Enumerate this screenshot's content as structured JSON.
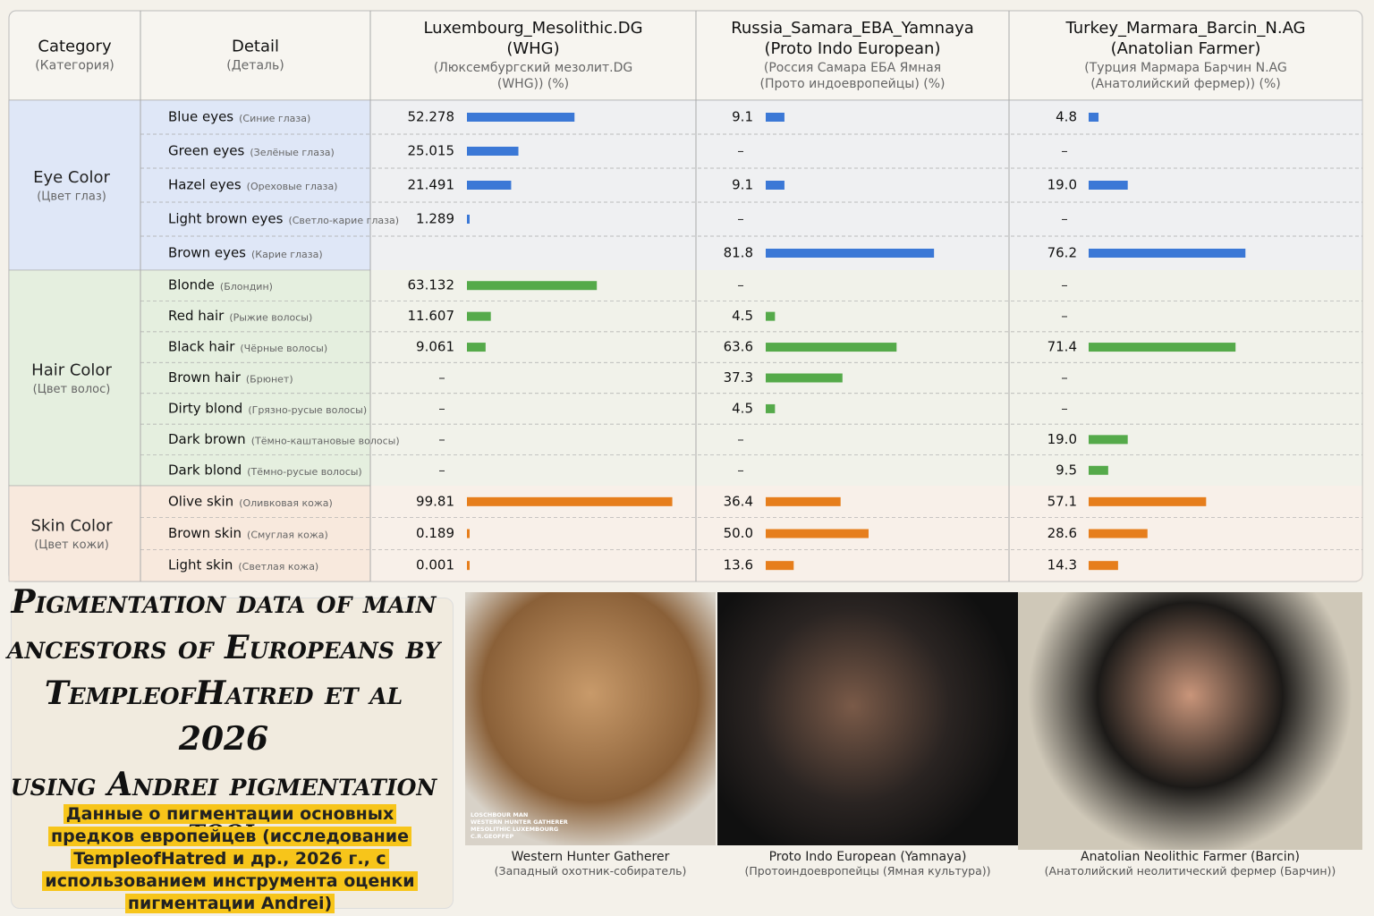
{
  "table": {
    "header": [
      {
        "title": [
          "Category"
        ],
        "subtitle": [
          "(Категория)"
        ]
      },
      {
        "title": [
          "Detail"
        ],
        "subtitle": [
          "(Деталь)"
        ]
      },
      {
        "title": [
          "Luxembourg_Mesolithic.DG",
          "(WHG)"
        ],
        "subtitle": [
          "(Люксембургский мезолит.DG",
          "(WHG)) (%)"
        ]
      },
      {
        "title": [
          "Russia_Samara_EBA_Yamnaya",
          "(Proto Indo European)"
        ],
        "subtitle": [
          "(Россия Самара ЕБА Ямная",
          "(Прото индоевропейцы) (%)"
        ]
      },
      {
        "title": [
          "Turkey_Marmara_Barcin_N.AG",
          "(Anatolian Farmer)"
        ],
        "subtitle": [
          "(Турция Мармара Барчин N.AG",
          "(Анатолийский фермер)) (%)"
        ]
      }
    ],
    "groups": [
      {
        "name": "Eye Color",
        "subtitle": "(Цвет глаз)",
        "color": "#3b78d6",
        "background": "#dfe7f7",
        "rows": [
          {
            "name": "Blue eyes",
            "subtitle": "(Синие глаза)",
            "values": [
              52.278,
              9.1,
              4.8
            ]
          },
          {
            "name": "Green eyes",
            "subtitle": "(Зелёные глаза)",
            "values": [
              25.015,
              "–",
              "–"
            ]
          },
          {
            "name": "Hazel eyes",
            "subtitle": "(Ореховые глаза)",
            "values": [
              21.491,
              9.1,
              {
                "value": 19,
                "label": "19.0"
              }
            ]
          },
          {
            "name": "Light brown eyes",
            "subtitle": "(Светло-карие глаза)",
            "values": [
              1.289,
              "–",
              "–"
            ]
          },
          {
            "name": "Brown eyes",
            "subtitle": "(Карие глаза)",
            "values": [
              null,
              81.8,
              76.2
            ]
          }
        ]
      },
      {
        "name": "Hair Color",
        "subtitle": "(Цвет волос)",
        "color": "#55aa4a",
        "background": "#e5efdf",
        "rows": [
          {
            "name": "Blonde",
            "subtitle": "(Блондин)",
            "values": [
              63.132,
              "–",
              "–"
            ]
          },
          {
            "name": "Red hair",
            "subtitle": "(Рыжие волосы)",
            "values": [
              11.607,
              4.5,
              "–"
            ]
          },
          {
            "name": "Black hair",
            "subtitle": "(Чёрные волосы)",
            "values": [
              9.061,
              63.6,
              71.4
            ]
          },
          {
            "name": "Brown hair",
            "subtitle": "(Брюнет)",
            "values": [
              "–",
              37.3,
              "–"
            ]
          },
          {
            "name": "Dirty blond",
            "subtitle": "(Грязно-русые волосы)",
            "values": [
              "–",
              4.5,
              "–"
            ]
          },
          {
            "name": "Dark brown",
            "subtitle": "(Тёмно-каштановые волосы)",
            "values": [
              "–",
              "–",
              {
                "value": 19,
                "label": "19.0"
              }
            ]
          },
          {
            "name": "Dark blond",
            "subtitle": "(Тёмно-русые волосы)",
            "values": [
              "–",
              "–",
              9.5
            ]
          }
        ]
      },
      {
        "name": "Skin Color",
        "subtitle": "(Цвет кожи)",
        "color": "#e67e1c",
        "background": "#f8e9dd",
        "rows": [
          {
            "name": "Olive skin",
            "subtitle": "(Оливковая кожа)",
            "values": [
              99.81,
              36.4,
              57.1
            ]
          },
          {
            "name": "Brown skin",
            "subtitle": "(Смуглая кожа)",
            "values": [
              0.189,
              {
                "value": 50,
                "label": "50.0"
              },
              28.6
            ]
          },
          {
            "name": "Light skin",
            "subtitle": "(Светлая кожа)",
            "values": [
              0.001,
              13.6,
              14.3
            ]
          }
        ]
      }
    ]
  },
  "title": [
    "Pigmentation data of main",
    "ancestors of Europeans by",
    "TempleofHatred et al 2026",
    "using Andrei pigmentation",
    "tool"
  ],
  "subtitle_ru": [
    "Данные о пигментации основных",
    "предков европейцев (исследование",
    "TempleofHatred и др., 2026 г., с",
    "использованием инструмента оценки",
    "пигментации Andrei)"
  ],
  "portraits": [
    {
      "caption": "Western Hunter Gatherer",
      "caption_ru": "(Западный охотник-собиратель)",
      "photo_text": [
        "LOSCHBOUR MAN",
        "WESTERN HUNTER GATHERER",
        "MESOLITHIC LUXEMBOURG",
        "C.R.GEOFFEP"
      ]
    },
    {
      "caption": "Proto Indo European (Yamnaya)",
      "caption_ru": "(Протоиндоевропейцы (Ямная культура))",
      "photo_text": []
    },
    {
      "caption": "Anatolian Neolithic Farmer (Barcin)",
      "caption_ru": "(Анатолийский неолитический фермер (Барчин))",
      "photo_text": []
    }
  ]
}
